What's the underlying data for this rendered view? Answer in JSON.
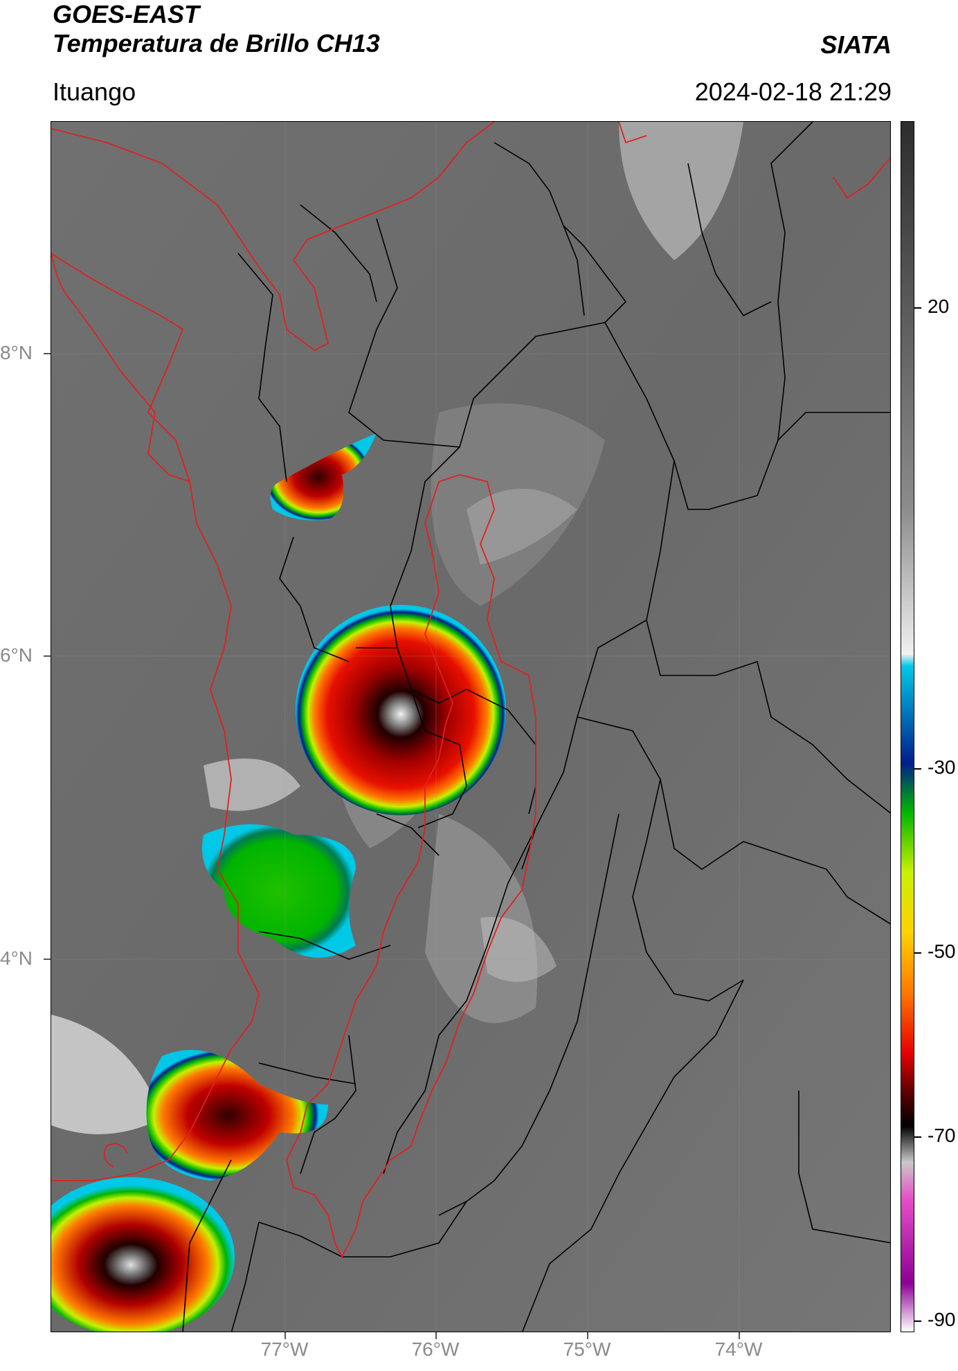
{
  "header": {
    "title_line1": "GOES-EAST",
    "title_line2": "Temperatura de Brillo CH13",
    "organization": "SIATA",
    "region": "Ituango",
    "timestamp": "2024-02-18 21:29"
  },
  "map": {
    "lat_labels": [
      "8°N",
      "6°N",
      "4°N"
    ],
    "lon_labels": [
      "77°W",
      "76°W",
      "75°W",
      "74°W"
    ],
    "colors": {
      "background_gray": "#6e6e6e",
      "country_border": "#e02020",
      "admin_border": "#000000"
    }
  },
  "colorbar": {
    "tick_labels": [
      "20",
      "-30",
      "-50",
      "-70",
      "-90"
    ],
    "colors": [
      "#2d2d2d",
      "#8c8c8c",
      "#f0f0f0",
      "#00c8e6",
      "#001e8c",
      "#00b400",
      "#c8f000",
      "#ffd200",
      "#ff7800",
      "#e60000",
      "#640000",
      "#000000",
      "#c8c8c8",
      "#e650c8",
      "#8c0096",
      "#ffffff"
    ]
  }
}
